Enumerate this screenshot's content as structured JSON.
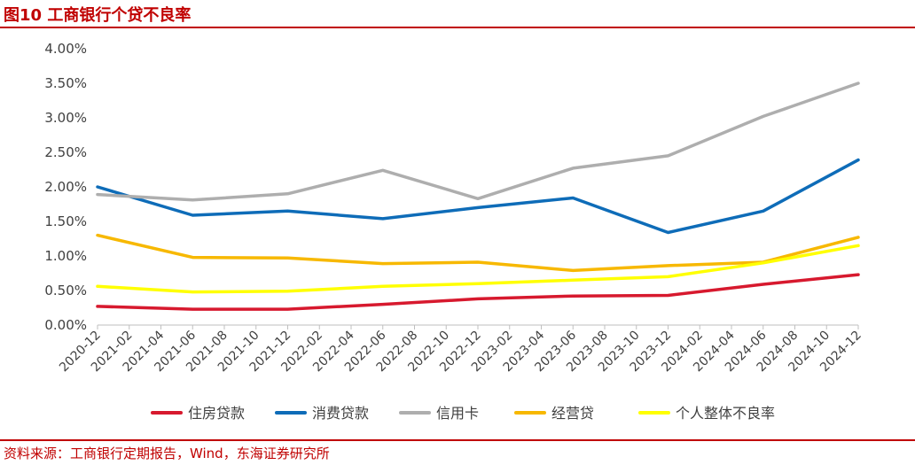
{
  "figure": {
    "title": "图10  工商银行个贷不良率",
    "source": "资料来源：工商银行定期报告，Wind，东海证券研究所"
  },
  "colors": {
    "brand_red": "#c00000"
  },
  "chart_data": {
    "type": "line",
    "categories": [
      "2020-12",
      "2021-02",
      "2021-04",
      "2021-06",
      "2021-08",
      "2021-10",
      "2021-12",
      "2022-02",
      "2022-04",
      "2022-06",
      "2022-08",
      "2022-10",
      "2022-12",
      "2023-02",
      "2023-04",
      "2023-06",
      "2023-08",
      "2023-10",
      "2023-12",
      "2024-02",
      "2024-04",
      "2024-06",
      "2024-08",
      "2024-10",
      "2024-12"
    ],
    "ylim": [
      0,
      4
    ],
    "yticks": [
      0,
      0.5,
      1,
      1.5,
      2,
      2.5,
      3,
      3.5,
      4
    ],
    "ytick_labels": [
      "0.00%",
      "0.50%",
      "1.00%",
      "1.50%",
      "2.00%",
      "2.50%",
      "3.00%",
      "3.50%",
      "4.00%"
    ],
    "legend_position": "bottom",
    "grid": false,
    "series": [
      {
        "name": "住房贷款",
        "color": "#d7192e",
        "x": [
          "2020-12",
          "2021-06",
          "2021-12",
          "2022-06",
          "2022-12",
          "2023-06",
          "2023-12",
          "2024-06",
          "2024-12"
        ],
        "values": [
          0.27,
          0.23,
          0.23,
          0.3,
          0.38,
          0.42,
          0.43,
          0.59,
          0.73
        ]
      },
      {
        "name": "消费贷款",
        "color": "#0e6cb8",
        "x": [
          "2020-12",
          "2021-06",
          "2021-12",
          "2022-06",
          "2022-12",
          "2023-06",
          "2023-12",
          "2024-06",
          "2024-12"
        ],
        "values": [
          2.0,
          1.59,
          1.65,
          1.54,
          1.7,
          1.84,
          1.34,
          1.65,
          2.39
        ]
      },
      {
        "name": "信用卡",
        "color": "#aeaeae",
        "x": [
          "2020-12",
          "2021-06",
          "2021-12",
          "2022-06",
          "2022-12",
          "2023-06",
          "2023-12",
          "2024-06",
          "2024-12"
        ],
        "values": [
          1.89,
          1.81,
          1.9,
          2.24,
          1.83,
          2.27,
          2.45,
          3.02,
          3.5
        ]
      },
      {
        "name": "经营贷",
        "color": "#f7b800",
        "x": [
          "2020-12",
          "2021-06",
          "2021-12",
          "2022-06",
          "2022-12",
          "2023-06",
          "2023-12",
          "2024-06",
          "2024-12"
        ],
        "values": [
          1.3,
          0.98,
          0.97,
          0.89,
          0.91,
          0.79,
          0.86,
          0.91,
          1.27
        ]
      },
      {
        "name": "个人整体不良率",
        "color": "#ffff00",
        "x": [
          "2020-12",
          "2021-06",
          "2021-12",
          "2022-06",
          "2022-12",
          "2023-06",
          "2023-12",
          "2024-06",
          "2024-12"
        ],
        "values": [
          0.56,
          0.48,
          0.49,
          0.56,
          0.6,
          0.65,
          0.7,
          0.9,
          1.15
        ]
      }
    ]
  }
}
